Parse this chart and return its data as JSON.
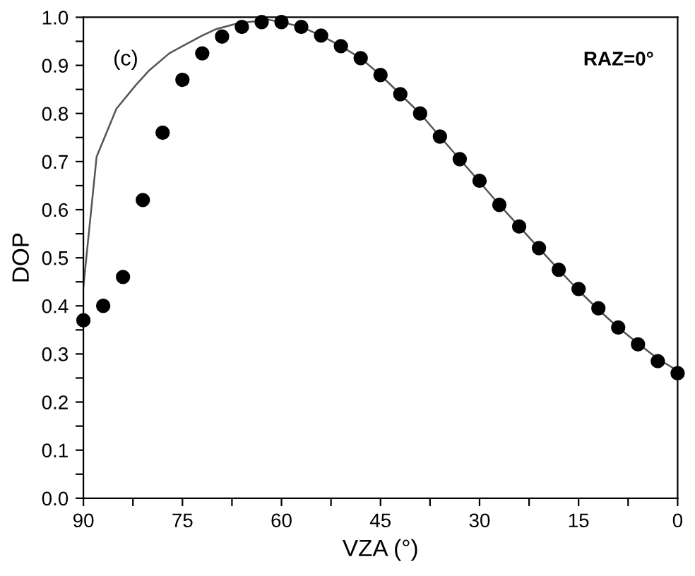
{
  "chart_data": {
    "type": "scatter",
    "xlabel": "VZA (°)",
    "ylabel": "DOP",
    "annotations": [
      "(c)",
      "RAZ=0°"
    ],
    "xlim": [
      90,
      0
    ],
    "ylim": [
      0,
      1.0
    ],
    "xticks": [
      90,
      {
        "value": 82.5,
        "label": null
      },
      75,
      {
        "value": 67.5,
        "label": null
      },
      60,
      {
        "value": 52.5,
        "label": null
      },
      45,
      {
        "value": 37.5,
        "label": null
      },
      30,
      {
        "value": 22.5,
        "label": null
      },
      15,
      {
        "value": 7.5,
        "label": null
      },
      0
    ],
    "yticks": [
      {
        "value": 0,
        "label": "0.0"
      },
      {
        "value": 0.05,
        "label": null
      },
      0.1,
      {
        "value": 0.15,
        "label": null
      },
      0.2,
      {
        "value": 0.25,
        "label": null
      },
      0.3,
      {
        "value": 0.35,
        "label": null
      },
      0.4,
      {
        "value": 0.45,
        "label": null
      },
      0.5,
      {
        "value": 0.55,
        "label": null
      },
      0.6,
      {
        "value": 0.65,
        "label": null
      },
      0.7,
      {
        "value": 0.75,
        "label": null
      },
      0.8,
      {
        "value": 0.85,
        "label": null
      },
      0.9,
      {
        "value": 0.95,
        "label": null
      },
      {
        "value": 1.0,
        "label": "1.0"
      }
    ],
    "grid": false,
    "legend": false,
    "series": [
      {
        "type": "line",
        "color": "#555555",
        "marker": "none",
        "line_style": "solid",
        "x": [
          90,
          88,
          85,
          82,
          80,
          77,
          75,
          72,
          70,
          67,
          65,
          62,
          60,
          57,
          54,
          51,
          48,
          45,
          42,
          39,
          36,
          33,
          30,
          27,
          24,
          21,
          18,
          15,
          12,
          9,
          6,
          3,
          0
        ],
        "values": [
          0.44,
          0.71,
          0.81,
          0.86,
          0.89,
          0.925,
          0.94,
          0.962,
          0.975,
          0.986,
          0.99,
          0.995,
          0.99,
          0.98,
          0.962,
          0.94,
          0.915,
          0.88,
          0.84,
          0.8,
          0.752,
          0.705,
          0.658,
          0.61,
          0.565,
          0.52,
          0.475,
          0.432,
          0.392,
          0.355,
          0.322,
          0.29,
          0.265
        ]
      },
      {
        "color": "#000000",
        "marker": "circle",
        "x": [
          90,
          87,
          84,
          81,
          78,
          75,
          72,
          69,
          66,
          63,
          60,
          57,
          54,
          51,
          48,
          45,
          42,
          39,
          36,
          33,
          30,
          27,
          24,
          21,
          18,
          15,
          12,
          9,
          6,
          3,
          0
        ],
        "values": [
          0.37,
          0.4,
          0.46,
          0.62,
          0.76,
          0.87,
          0.925,
          0.96,
          0.98,
          0.99,
          0.99,
          0.98,
          0.962,
          0.94,
          0.915,
          0.88,
          0.84,
          0.8,
          0.752,
          0.705,
          0.66,
          0.61,
          0.565,
          0.52,
          0.475,
          0.435,
          0.395,
          0.355,
          0.32,
          0.285,
          0.26
        ]
      }
    ]
  }
}
